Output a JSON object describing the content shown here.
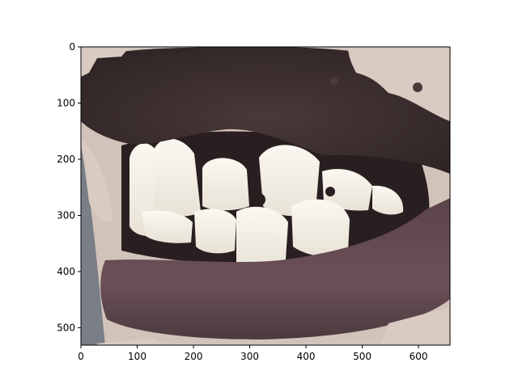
{
  "figure": {
    "description_free": true,
    "x_ticks": [
      "0",
      "100",
      "200",
      "300",
      "400",
      "500",
      "600"
    ],
    "y_ticks": [
      "0",
      "100",
      "200",
      "300",
      "400",
      "500"
    ],
    "x_tick_values": [
      0,
      100,
      200,
      300,
      400,
      500,
      600
    ],
    "y_tick_values": [
      0,
      100,
      200,
      300,
      400,
      500
    ],
    "image_extent": {
      "width": 656,
      "height": 531
    },
    "colors": {
      "lip_dark": "#3c2f30",
      "lip_mid": "#5a4445",
      "lip_lower": "#6a4e55",
      "teeth": "#f3efe6",
      "skin_patch": "#d7c8bf",
      "gum": "#2a1e1f",
      "shadow": "#7b7f87"
    }
  }
}
